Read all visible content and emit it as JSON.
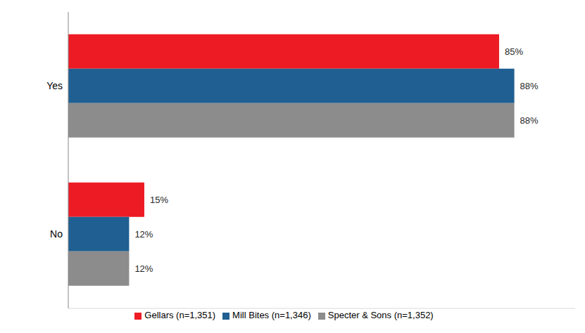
{
  "chart_data": {
    "type": "bar",
    "orientation": "horizontal",
    "categories": [
      "Yes",
      "No"
    ],
    "xlim": [
      0,
      100
    ],
    "tick_labels": "y",
    "grid": false,
    "legend": "bottom",
    "data_labels": true,
    "series": [
      {
        "name": "Gellars (n=1,351)",
        "color": "#ed1c24",
        "values": [
          85,
          15
        ],
        "value_labels": [
          "85%",
          "15%"
        ]
      },
      {
        "name": "Mill Bites (n=1,346)",
        "color": "#1f5f91",
        "values": [
          88,
          12
        ],
        "value_labels": [
          "88%",
          "12%"
        ]
      },
      {
        "name": "Specter & Sons (n=1,352)",
        "color": "#8c8c8c",
        "values": [
          88,
          12
        ],
        "value_labels": [
          "88%",
          "12%"
        ]
      }
    ]
  }
}
